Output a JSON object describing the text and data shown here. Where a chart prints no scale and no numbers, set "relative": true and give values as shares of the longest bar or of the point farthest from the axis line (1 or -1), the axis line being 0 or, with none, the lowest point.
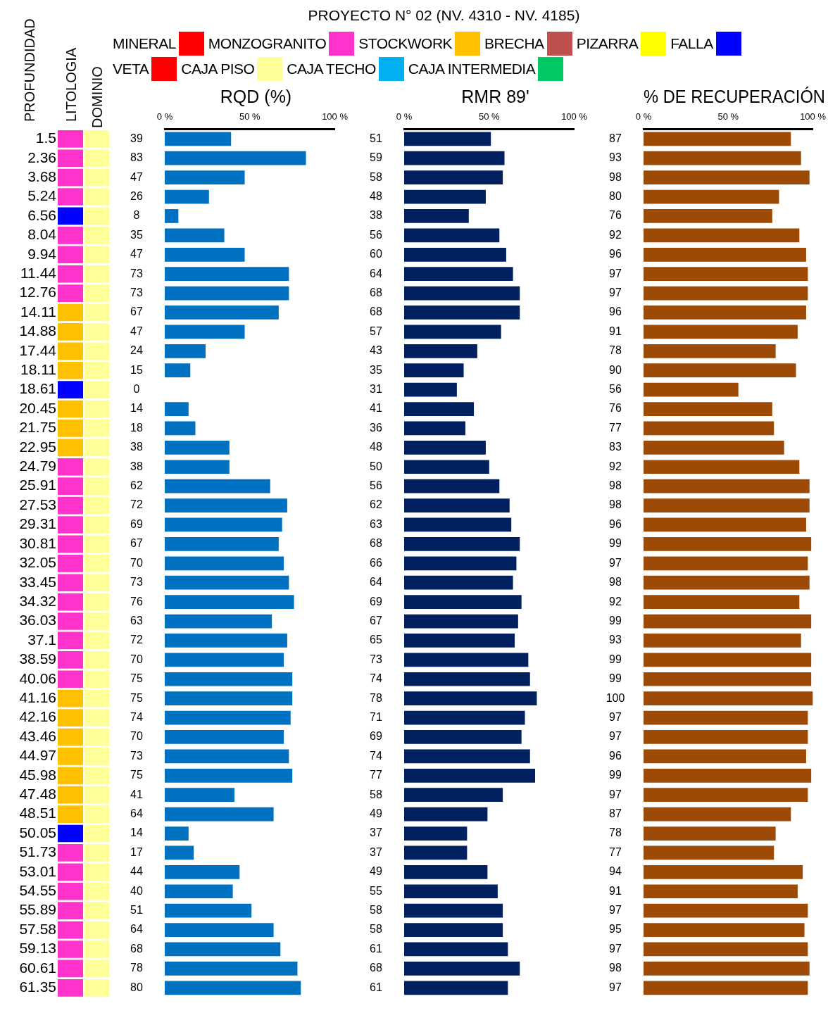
{
  "chart_data": [
    {
      "type": "bar",
      "annotations": [
        "PROYECTO N° 02  (NV. 4310 - NV. 4185)"
      ],
      "ylabel": "PROFUNDIDAD",
      "title": "LITOLOGIA",
      "orientation": "horizontal",
      "stacked": true,
      "relative": true,
      "legend": "top",
      "tick_labels": "y",
      "grid": false,
      "categories": [
        "1.5",
        "2.36",
        "3.68",
        "5.24",
        "6.56",
        "8.04",
        "9.94",
        "11.44",
        "12.76",
        "14.11",
        "14.88",
        "17.44",
        "18.11",
        "18.61",
        "20.45",
        "21.75",
        "22.95",
        "24.79",
        "25.91",
        "27.53",
        "29.31",
        "30.81",
        "32.05",
        "33.45",
        "34.32",
        "36.03",
        "37.1",
        "38.59",
        "40.06",
        "41.16",
        "42.16",
        "43.46",
        "44.97",
        "45.98",
        "47.48",
        "48.51",
        "50.05",
        "51.73",
        "53.01",
        "54.55",
        "55.89",
        "57.58",
        "59.13",
        "60.61",
        "61.35"
      ],
      "series": [
        {
          "name": "MINERAL",
          "color": "#ff0000",
          "values": [
            null,
            null,
            null,
            null,
            null,
            null,
            null,
            null,
            null,
            null,
            null,
            null,
            null,
            null,
            null,
            null,
            null,
            null,
            null,
            null,
            null,
            null,
            null,
            null,
            null,
            null,
            null,
            null,
            null,
            null,
            null,
            null,
            null,
            null,
            null,
            null,
            null,
            null,
            null,
            null,
            null,
            null,
            null,
            null,
            null
          ]
        },
        {
          "name": "MONZOGRANITO",
          "color": "#ff33cc",
          "values": [
            1,
            1,
            1,
            1,
            null,
            1,
            1,
            1,
            1,
            null,
            null,
            null,
            null,
            null,
            null,
            null,
            null,
            1,
            1,
            1,
            1,
            1,
            1,
            1,
            1,
            1,
            1,
            1,
            1,
            null,
            null,
            null,
            null,
            null,
            null,
            null,
            null,
            1,
            1,
            1,
            1,
            1,
            1,
            1,
            1
          ]
        },
        {
          "name": "STOCKWORK",
          "color": "#ffc000",
          "values": [
            null,
            null,
            null,
            null,
            null,
            null,
            null,
            null,
            null,
            1,
            1,
            1,
            1,
            null,
            1,
            1,
            1,
            null,
            null,
            null,
            null,
            null,
            null,
            null,
            null,
            null,
            null,
            null,
            null,
            1,
            1,
            1,
            1,
            1,
            1,
            1,
            null,
            null,
            null,
            null,
            null,
            null,
            null,
            null,
            null
          ]
        },
        {
          "name": "BRECHA",
          "color": "#c0504d",
          "values": [
            null,
            null,
            null,
            null,
            null,
            null,
            null,
            null,
            null,
            null,
            null,
            null,
            null,
            null,
            null,
            null,
            null,
            null,
            null,
            null,
            null,
            null,
            null,
            null,
            null,
            null,
            null,
            null,
            null,
            null,
            null,
            null,
            null,
            null,
            null,
            null,
            null,
            null,
            null,
            null,
            null,
            null,
            null,
            null,
            null
          ]
        },
        {
          "name": "PIZARRA",
          "color": "#ffff00",
          "values": [
            null,
            null,
            null,
            null,
            null,
            null,
            null,
            null,
            null,
            null,
            null,
            null,
            null,
            null,
            null,
            null,
            null,
            null,
            null,
            null,
            null,
            null,
            null,
            null,
            null,
            null,
            null,
            null,
            null,
            null,
            null,
            null,
            null,
            null,
            null,
            null,
            null,
            null,
            null,
            null,
            null,
            null,
            null,
            null,
            null
          ]
        },
        {
          "name": "FALLA",
          "color": "#0000ff",
          "values": [
            null,
            null,
            null,
            null,
            1,
            null,
            null,
            null,
            null,
            null,
            null,
            null,
            null,
            1,
            null,
            null,
            null,
            null,
            null,
            null,
            null,
            null,
            null,
            null,
            null,
            null,
            null,
            null,
            null,
            null,
            null,
            null,
            null,
            null,
            null,
            null,
            1,
            null,
            null,
            null,
            null,
            null,
            null,
            null,
            null
          ]
        }
      ]
    },
    {
      "type": "bar",
      "title": "DOMINIO",
      "orientation": "horizontal",
      "stacked": true,
      "relative": true,
      "legend": "top",
      "tick_labels": false,
      "grid": false,
      "categories": [
        "1.5",
        "2.36",
        "3.68",
        "5.24",
        "6.56",
        "8.04",
        "9.94",
        "11.44",
        "12.76",
        "14.11",
        "14.88",
        "17.44",
        "18.11",
        "18.61",
        "20.45",
        "21.75",
        "22.95",
        "24.79",
        "25.91",
        "27.53",
        "29.31",
        "30.81",
        "32.05",
        "33.45",
        "34.32",
        "36.03",
        "37.1",
        "38.59",
        "40.06",
        "41.16",
        "42.16",
        "43.46",
        "44.97",
        "45.98",
        "47.48",
        "48.51",
        "50.05",
        "51.73",
        "53.01",
        "54.55",
        "55.89",
        "57.58",
        "59.13",
        "60.61",
        "61.35"
      ],
      "series": [
        {
          "name": "VETA",
          "color": "#ff0000",
          "values": [
            null,
            null,
            null,
            null,
            null,
            null,
            null,
            null,
            null,
            null,
            null,
            null,
            null,
            null,
            null,
            null,
            null,
            null,
            null,
            null,
            null,
            null,
            null,
            null,
            null,
            null,
            null,
            null,
            null,
            null,
            null,
            null,
            null,
            null,
            null,
            null,
            null,
            null,
            null,
            null,
            null,
            null,
            null,
            null,
            null
          ]
        },
        {
          "name": "CAJA PISO",
          "color": "#ffff99",
          "values": [
            1,
            1,
            1,
            1,
            1,
            1,
            1,
            1,
            1,
            1,
            1,
            1,
            1,
            1,
            1,
            1,
            1,
            1,
            1,
            1,
            1,
            1,
            1,
            1,
            1,
            1,
            1,
            1,
            1,
            1,
            1,
            1,
            1,
            1,
            1,
            1,
            1,
            1,
            1,
            1,
            1,
            1,
            1,
            1,
            1
          ]
        },
        {
          "name": "CAJA TECHO",
          "color": "#00b0f0",
          "values": [
            null,
            null,
            null,
            null,
            null,
            null,
            null,
            null,
            null,
            null,
            null,
            null,
            null,
            null,
            null,
            null,
            null,
            null,
            null,
            null,
            null,
            null,
            null,
            null,
            null,
            null,
            null,
            null,
            null,
            null,
            null,
            null,
            null,
            null,
            null,
            null,
            null,
            null,
            null,
            null,
            null,
            null,
            null,
            null,
            null
          ]
        },
        {
          "name": "CAJA INTERMEDIA",
          "color": "#00c864",
          "values": [
            null,
            null,
            null,
            null,
            null,
            null,
            null,
            null,
            null,
            null,
            null,
            null,
            null,
            null,
            null,
            null,
            null,
            null,
            null,
            null,
            null,
            null,
            null,
            null,
            null,
            null,
            null,
            null,
            null,
            null,
            null,
            null,
            null,
            null,
            null,
            null,
            null,
            null,
            null,
            null,
            null,
            null,
            null,
            null,
            null
          ]
        }
      ]
    },
    {
      "type": "bar",
      "title": "RQD (%)",
      "orientation": "horizontal",
      "tick_labels": "x",
      "grid": false,
      "data_labels": true,
      "color": "#0070c0",
      "categories": [
        "1.5",
        "2.36",
        "3.68",
        "5.24",
        "6.56",
        "8.04",
        "9.94",
        "11.44",
        "12.76",
        "14.11",
        "14.88",
        "17.44",
        "18.11",
        "18.61",
        "20.45",
        "21.75",
        "22.95",
        "24.79",
        "25.91",
        "27.53",
        "29.31",
        "30.81",
        "32.05",
        "33.45",
        "34.32",
        "36.03",
        "37.1",
        "38.59",
        "40.06",
        "41.16",
        "42.16",
        "43.46",
        "44.97",
        "45.98",
        "47.48",
        "48.51",
        "50.05",
        "51.73",
        "53.01",
        "54.55",
        "55.89",
        "57.58",
        "59.13",
        "60.61",
        "61.35"
      ],
      "xlim": [
        0,
        100
      ],
      "xticks": [
        {
          "value": 0,
          "label": "0 %"
        },
        {
          "value": 50,
          "label": "50 %"
        },
        {
          "value": 100,
          "label": "100 %"
        }
      ],
      "values": [
        39,
        83,
        47,
        26,
        8,
        35,
        47,
        73,
        73,
        67,
        47,
        24,
        15,
        0,
        14,
        18,
        38,
        38,
        62,
        72,
        69,
        67,
        70,
        73,
        76,
        63,
        72,
        70,
        75,
        75,
        74,
        70,
        73,
        75,
        41,
        64,
        14,
        17,
        44,
        40,
        51,
        64,
        68,
        78,
        80
      ]
    },
    {
      "type": "bar",
      "title": "RMR 89'",
      "orientation": "horizontal",
      "tick_labels": "x",
      "grid": false,
      "data_labels": true,
      "color": "#002060",
      "categories": [
        "1.5",
        "2.36",
        "3.68",
        "5.24",
        "6.56",
        "8.04",
        "9.94",
        "11.44",
        "12.76",
        "14.11",
        "14.88",
        "17.44",
        "18.11",
        "18.61",
        "20.45",
        "21.75",
        "22.95",
        "24.79",
        "25.91",
        "27.53",
        "29.31",
        "30.81",
        "32.05",
        "33.45",
        "34.32",
        "36.03",
        "37.1",
        "38.59",
        "40.06",
        "41.16",
        "42.16",
        "43.46",
        "44.97",
        "45.98",
        "47.48",
        "48.51",
        "50.05",
        "51.73",
        "53.01",
        "54.55",
        "55.89",
        "57.58",
        "59.13",
        "60.61",
        "61.35"
      ],
      "xlim": [
        0,
        100
      ],
      "xticks": [
        {
          "value": 0,
          "label": "0 %"
        },
        {
          "value": 50,
          "label": "50 %"
        },
        {
          "value": 100,
          "label": "100 %"
        }
      ],
      "values": [
        51,
        59,
        58,
        48,
        38,
        56,
        60,
        64,
        68,
        68,
        57,
        43,
        35,
        31,
        41,
        36,
        48,
        50,
        56,
        62,
        63,
        68,
        66,
        64,
        69,
        67,
        65,
        73,
        74,
        78,
        71,
        69,
        74,
        77,
        58,
        49,
        37,
        37,
        49,
        55,
        58,
        58,
        61,
        68,
        61
      ]
    },
    {
      "type": "bar",
      "title": "% DE RECUPERACIÓN",
      "orientation": "horizontal",
      "tick_labels": "x",
      "grid": false,
      "data_labels": true,
      "color": "#9c4a06",
      "categories": [
        "1.5",
        "2.36",
        "3.68",
        "5.24",
        "6.56",
        "8.04",
        "9.94",
        "11.44",
        "12.76",
        "14.11",
        "14.88",
        "17.44",
        "18.11",
        "18.61",
        "20.45",
        "21.75",
        "22.95",
        "24.79",
        "25.91",
        "27.53",
        "29.31",
        "30.81",
        "32.05",
        "33.45",
        "34.32",
        "36.03",
        "37.1",
        "38.59",
        "40.06",
        "41.16",
        "42.16",
        "43.46",
        "44.97",
        "45.98",
        "47.48",
        "48.51",
        "50.05",
        "51.73",
        "53.01",
        "54.55",
        "55.89",
        "57.58",
        "59.13",
        "60.61",
        "61.35"
      ],
      "xlim": [
        0,
        100
      ],
      "xticks": [
        {
          "value": 0,
          "label": "0 %"
        },
        {
          "value": 50,
          "label": "50 %"
        },
        {
          "value": 100,
          "label": "100 %"
        }
      ],
      "values": [
        87,
        93,
        98,
        80,
        76,
        92,
        96,
        97,
        97,
        96,
        91,
        78,
        90,
        56,
        76,
        77,
        83,
        92,
        98,
        98,
        96,
        99,
        97,
        98,
        92,
        99,
        93,
        99,
        99,
        100,
        97,
        97,
        96,
        99,
        97,
        87,
        78,
        77,
        94,
        91,
        97,
        95,
        97,
        98,
        97
      ]
    }
  ]
}
